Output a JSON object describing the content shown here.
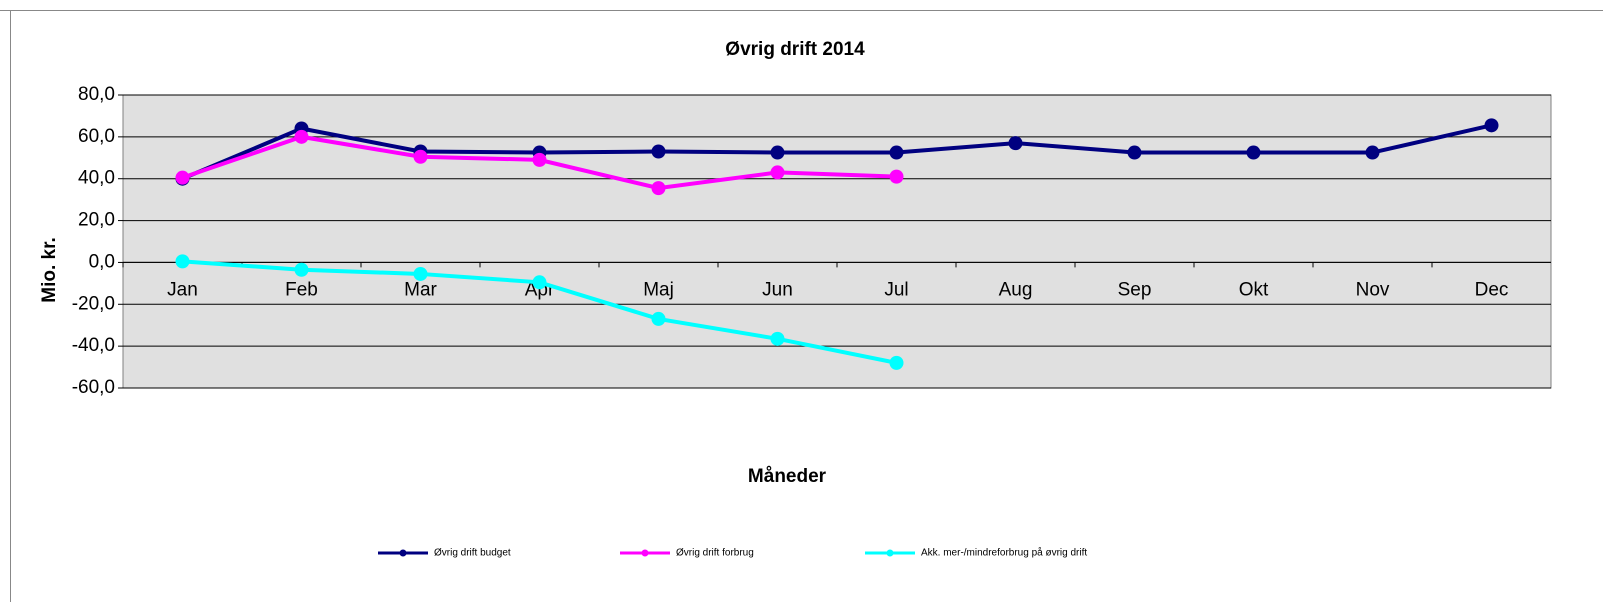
{
  "chart_data": {
    "type": "line",
    "title": "Øvrig drift 2014",
    "x_label": "Måneder",
    "y_label": "Mio. kr.",
    "categories": [
      "Jan",
      "Feb",
      "Mar",
      "Apr",
      "Maj",
      "Jun",
      "Jul",
      "Aug",
      "Sep",
      "Okt",
      "Nov",
      "Dec"
    ],
    "series": [
      {
        "name": "Øvrig drift budget",
        "color": "#000080",
        "values": [
          40,
          64,
          53,
          52.5,
          53,
          52.5,
          52.5,
          57,
          52.5,
          52.5,
          52.5,
          65.5
        ]
      },
      {
        "name": "Øvrig drift forbrug",
        "color": "#ff00ff",
        "values": [
          40.5,
          60,
          50.5,
          49,
          35.5,
          43,
          41,
          null,
          null,
          null,
          null,
          null
        ]
      },
      {
        "name": "Akk. mer-/mindreforbrug på øvrig drift",
        "color": "#00ffff",
        "values": [
          0.5,
          -3.5,
          -5.5,
          -9.5,
          -27,
          -36.5,
          -48,
          null,
          null,
          null,
          null,
          null
        ]
      }
    ],
    "ylim": [
      -60,
      80
    ],
    "yticks": [
      {
        "value": -60,
        "label": "-60,0"
      },
      {
        "value": -40,
        "label": "-40,0"
      },
      {
        "value": -20,
        "label": "-20,0"
      },
      {
        "value": 0,
        "label": "0,0"
      },
      {
        "value": 20,
        "label": "20,0"
      },
      {
        "value": 40,
        "label": "40,0"
      },
      {
        "value": 60,
        "label": "60,0"
      },
      {
        "value": 80,
        "label": "80,0"
      }
    ],
    "grid": true,
    "legend": "bottom"
  }
}
